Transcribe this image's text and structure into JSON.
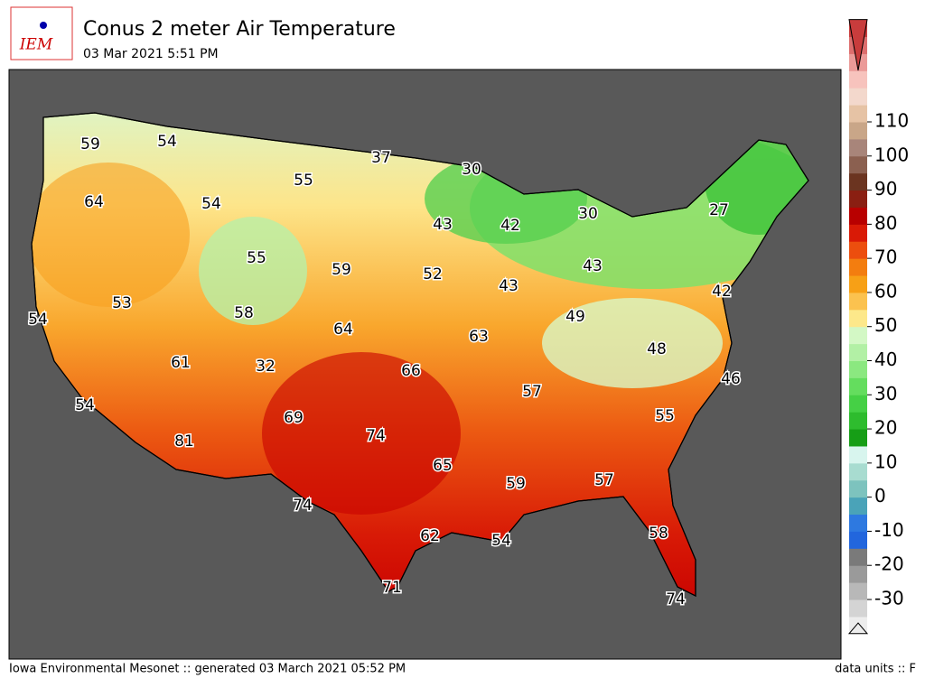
{
  "header": {
    "logo": "IEM",
    "title": "Conus 2 meter Air Temperature",
    "subtitle": "03 Mar 2021 5:51 PM"
  },
  "map": {
    "station_values": [
      59,
      54,
      37,
      30,
      64,
      54,
      55,
      55,
      43,
      42,
      30,
      27,
      59,
      52,
      43,
      43,
      42,
      53,
      54,
      58,
      64,
      49,
      63,
      48,
      61,
      32,
      66,
      57,
      46,
      54,
      69,
      55,
      74,
      81,
      65,
      59,
      57,
      74,
      62,
      54,
      58,
      71,
      74
    ]
  },
  "colorbar": {
    "ticks": [
      -30,
      -20,
      -10,
      0,
      10,
      20,
      30,
      40,
      50,
      60,
      70,
      80,
      90,
      100,
      110
    ]
  },
  "footer": {
    "left": "Iowa Environmental Mesonet :: generated 03 March 2021 05:52 PM",
    "right": "data units :: F"
  }
}
